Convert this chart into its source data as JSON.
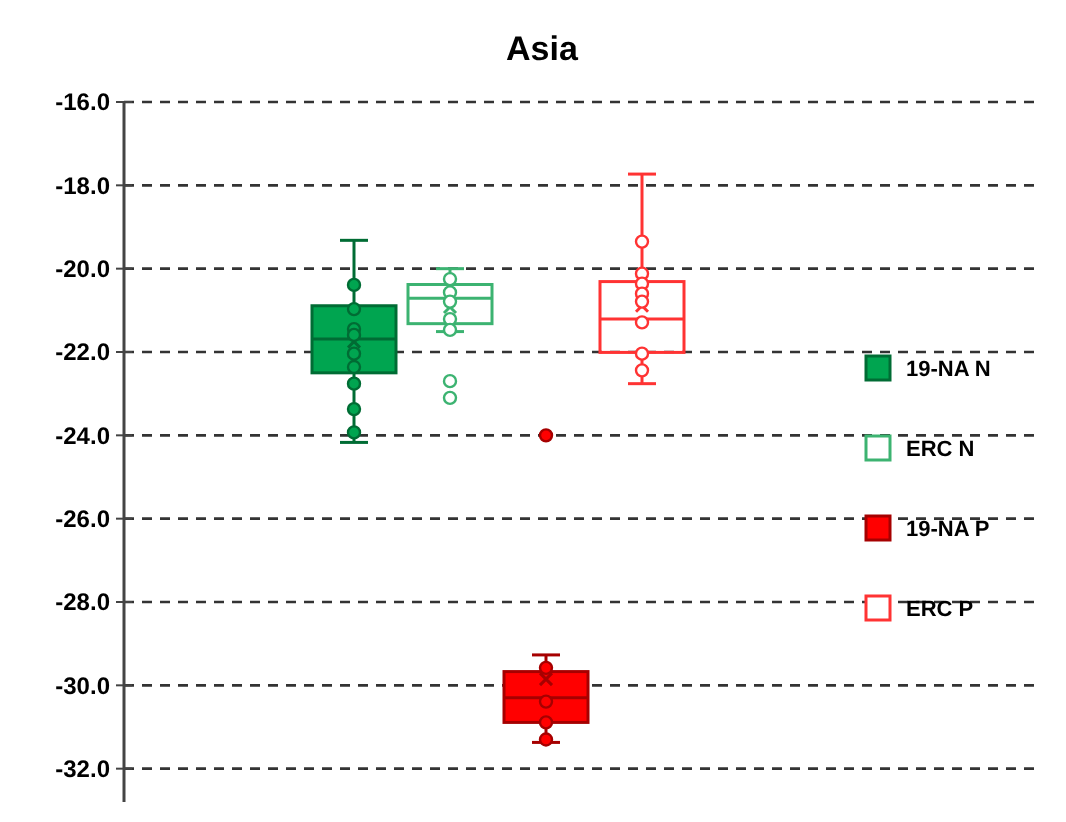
{
  "chart_data": {
    "type": "box",
    "title": "Asia",
    "categories": [
      null
    ],
    "ylim": [
      -32.8,
      -16
    ],
    "yticks": [
      {
        "value": -16,
        "label": "-16.0"
      },
      {
        "value": -18,
        "label": "-18.0"
      },
      {
        "value": -20,
        "label": "-20.0"
      },
      {
        "value": -22,
        "label": "-22.0"
      },
      {
        "value": -24,
        "label": "-24.0"
      },
      {
        "value": -26,
        "label": "-26.0"
      },
      {
        "value": -28,
        "label": "-28.0"
      },
      {
        "value": -30,
        "label": "-30.0"
      },
      {
        "value": -32,
        "label": "-32.0"
      }
    ],
    "grid": "y",
    "legend": "right",
    "marker": "circle",
    "series": [
      {
        "name": "19-NA N",
        "color": "#00a550",
        "boxes": [
          {
            "low": -24.17,
            "q1": -22.5,
            "median": -21.69,
            "q3": -20.89,
            "high": -19.32,
            "mean": -21.75,
            "outliers": [
              -20.39,
              -20.97,
              -21.45,
              -21.59,
              -22.04,
              -22.36,
              -22.76,
              -23.37,
              -23.93
            ]
          }
        ]
      },
      {
        "name": "ERC N",
        "color": "#3cb371",
        "boxes": [
          {
            "low": -21.51,
            "q1": -21.32,
            "median": -20.71,
            "q3": -20.38,
            "high": -20.0,
            "mean": -20.92,
            "outliers": [
              -20.25,
              -20.57,
              -20.79,
              -21.21,
              -21.47,
              -22.7,
              -23.1
            ]
          }
        ]
      },
      {
        "name": "19-NA P",
        "color": "#ff0000",
        "boxes": [
          {
            "low": -31.37,
            "q1": -30.89,
            "median": -30.3,
            "q3": -29.67,
            "high": -29.27,
            "mean": -29.85,
            "outliers": [
              -24.0,
              -29.58,
              -30.39,
              -30.89,
              -31.3
            ]
          }
        ]
      },
      {
        "name": "ERC P",
        "color": "#ff3333",
        "boxes": [
          {
            "low": -22.76,
            "q1": -22.01,
            "median": -21.21,
            "q3": -20.31,
            "high": -17.73,
            "mean": -20.89,
            "outliers": [
              -19.35,
              -20.12,
              -20.36,
              -20.6,
              -20.79,
              -21.29,
              -22.04,
              -22.44
            ]
          }
        ]
      }
    ]
  }
}
